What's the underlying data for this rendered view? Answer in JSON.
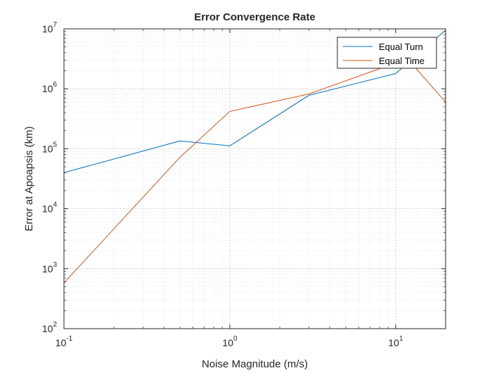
{
  "chart_data": {
    "type": "line",
    "title": "Error Convergence Rate",
    "xlabel": "Noise Magnitude (m/s)",
    "ylabel": "Error at Apoapsis (km)",
    "xscale": "log",
    "yscale": "log",
    "xlim": [
      0.1,
      20
    ],
    "ylim": [
      100,
      10000000
    ],
    "grid": true,
    "minor_grid": true,
    "legend_position": "top-right",
    "x_ticks": [
      {
        "base": "10",
        "exp": "-1",
        "value": 0.1
      },
      {
        "base": "10",
        "exp": "0",
        "value": 1
      },
      {
        "base": "10",
        "exp": "1",
        "value": 10
      }
    ],
    "y_ticks": [
      {
        "base": "10",
        "exp": "2",
        "value": 100
      },
      {
        "base": "10",
        "exp": "3",
        "value": 1000
      },
      {
        "base": "10",
        "exp": "4",
        "value": 10000
      },
      {
        "base": "10",
        "exp": "5",
        "value": 100000
      },
      {
        "base": "10",
        "exp": "6",
        "value": 1000000
      },
      {
        "base": "10",
        "exp": "7",
        "value": 10000000
      }
    ],
    "series": [
      {
        "name": "Equal Turn",
        "color": "#0072BD",
        "x": [
          0.1,
          0.5,
          1,
          3,
          10,
          20
        ],
        "y": [
          40000,
          135000,
          112000,
          780000,
          1800000,
          9500000
        ]
      },
      {
        "name": "Equal Time",
        "color": "#D95319",
        "x": [
          0.1,
          0.5,
          1,
          3,
          10,
          12,
          20
        ],
        "y": [
          580,
          72000,
          420000,
          820000,
          2700000,
          3000000,
          600000
        ]
      }
    ]
  }
}
